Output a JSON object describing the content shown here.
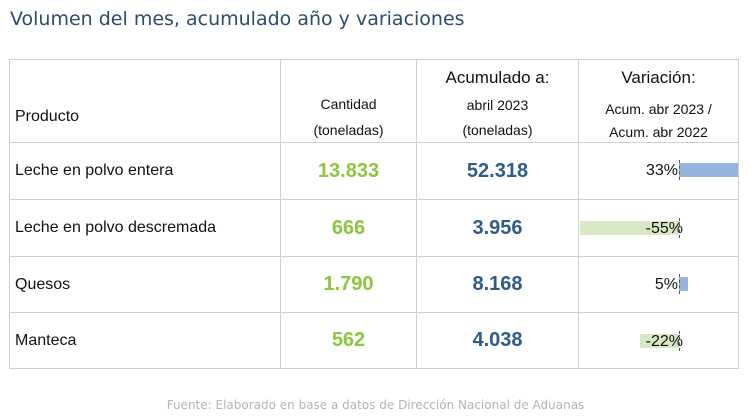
{
  "title": "Volumen del mes, acumulado año y variaciones",
  "header": {
    "producto": "Producto",
    "cantidad_line1": "Cantidad",
    "cantidad_line2": "(toneladas)",
    "acumulado_title": "Acumulado a:",
    "acumulado_line1": "abril 2023",
    "acumulado_line2": "(toneladas)",
    "variacion_title": "Variación:",
    "variacion_line1": "Acum. abr 2023 /",
    "variacion_line2": "Acum. abr 2022"
  },
  "rows": [
    {
      "producto": "Leche en polvo entera",
      "cantidad": "13.833",
      "acumulado": "52.318",
      "variacion": "33%",
      "variacion_value": 33
    },
    {
      "producto": "Leche en polvo descremada",
      "cantidad": "666",
      "acumulado": "3.956",
      "variacion": "-55%",
      "variacion_value": -55
    },
    {
      "producto": "Quesos",
      "cantidad": "1.790",
      "acumulado": "8.168",
      "variacion": "5%",
      "variacion_value": 5
    },
    {
      "producto": "Manteca",
      "cantidad": "562",
      "acumulado": "4.038",
      "variacion": "-22%",
      "variacion_value": -22
    }
  ],
  "colors": {
    "positive_bar": "#97b5dc",
    "negative_bar": "#d9e8c4",
    "cantidad_text": "#8cc63f",
    "acumulado_text": "#2f5b8a",
    "title_text": "#2d4a6f"
  },
  "footer": "Fuente: Elaborado en base a datos de Dirección Nacional de Aduanas"
}
